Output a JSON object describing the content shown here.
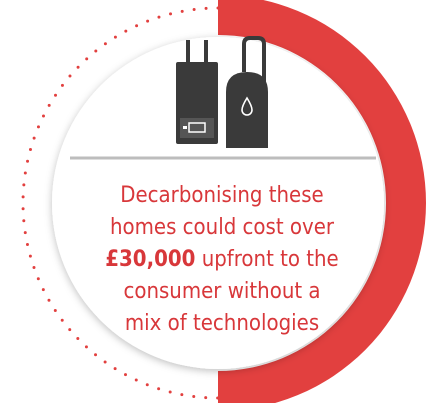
{
  "headline": {
    "line1": "Decarbonising these",
    "line2": "homes could cost over",
    "highlight": "£30,000",
    "line3": " upfront to the",
    "line4": "consumer without a",
    "line5": "mix of technologies"
  }
}
